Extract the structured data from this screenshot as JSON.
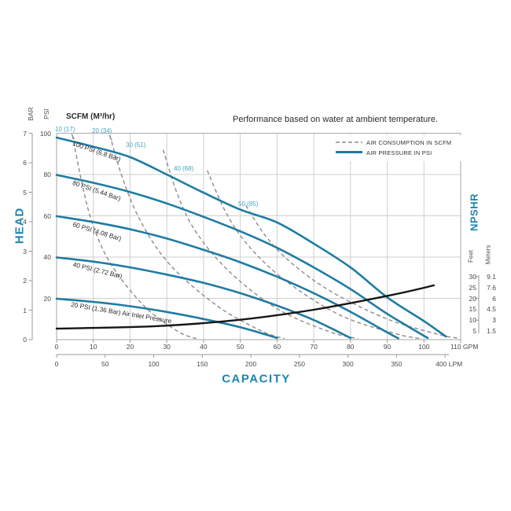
{
  "title": "Performance based on water at ambient temperature.",
  "legend": {
    "position": "top-right",
    "items": [
      {
        "label": "AIR CONSUMPTION IN SCFM",
        "style": "dashed-gray"
      },
      {
        "label": "AIR PRESSURE IN PSI",
        "style": "solid-blue"
      }
    ]
  },
  "scfm_header": "SCFM (M³/hr)",
  "axes": {
    "left": {
      "title": "HEAD",
      "col1": "BAR",
      "col2": "PSI",
      "bar_ticks": [
        "7",
        "6",
        "5",
        "4",
        "3",
        "2",
        "1",
        "0"
      ],
      "psi_ticks": [
        "100",
        "80",
        "60",
        "40",
        "20"
      ]
    },
    "bottom": {
      "title": "CAPACITY",
      "gpm_ticks": [
        "0",
        "10",
        "20",
        "30",
        "40",
        "50",
        "60",
        "70",
        "80",
        "90",
        "100",
        "110"
      ],
      "gpm_unit": "GPM",
      "lpm_ticks": [
        "0",
        "50",
        "100",
        "150",
        "200",
        "250",
        "300",
        "350",
        "400"
      ],
      "lpm_unit": "LPM"
    },
    "right": {
      "title": "NPSHR",
      "col1": "Feet",
      "col2": "Meters",
      "rows": [
        [
          "30",
          "9.1"
        ],
        [
          "25",
          "7.6"
        ],
        [
          "20",
          "6"
        ],
        [
          "15",
          "4.5"
        ],
        [
          "10",
          "3"
        ],
        [
          "5",
          "1.5"
        ]
      ]
    }
  },
  "colors": {
    "accent_blue": "#1e7ca3",
    "label_blue": "#48a2c3",
    "title_blue": "#1f85ad",
    "dashed_gray": "#8c8c8c",
    "grid": "#cfcfcf",
    "border": "#b3b3b3",
    "black_curve": "#161616",
    "text": "#4a4a4a"
  },
  "chart_data": {
    "type": "line",
    "title": "Performance based on water at ambient temperature.",
    "grid": true,
    "legend_position": "top-right",
    "x_axis": {
      "label": "CAPACITY",
      "primary_unit": "GPM",
      "primary_range": [
        0,
        110
      ],
      "primary_tick_step": 10,
      "secondary_unit": "LPM",
      "secondary_range": [
        0,
        400
      ],
      "secondary_tick_step": 50
    },
    "y_axis_left": {
      "label": "HEAD",
      "units": [
        "BAR",
        "PSI"
      ],
      "bar_range": [
        0,
        7
      ],
      "psi_range": [
        0,
        100
      ]
    },
    "y_axis_right": {
      "label": "NPSHR",
      "units": [
        "Feet",
        "Meters"
      ],
      "feet_ticks": [
        30,
        25,
        20,
        15,
        10,
        5
      ],
      "meters_ticks": [
        9.1,
        7.6,
        6,
        4.5,
        3,
        1.5
      ]
    },
    "pressure_curves": [
      {
        "label": "100 PSI (6.8 Bar)",
        "air_inlet_psi": 100,
        "points_gpm_psi": [
          [
            0,
            97.9
          ],
          [
            10,
            93.5
          ],
          [
            20,
            88.4
          ],
          [
            30,
            80
          ],
          [
            40,
            71.2
          ],
          [
            50,
            63
          ],
          [
            60,
            56.8
          ],
          [
            70,
            46.5
          ],
          [
            80,
            35
          ],
          [
            90,
            20.5
          ],
          [
            100,
            9
          ],
          [
            106,
            1.5
          ]
        ]
      },
      {
        "label": "80 PSI (5.44 Bar)",
        "air_inlet_psi": 80,
        "points_gpm_psi": [
          [
            0,
            79.8
          ],
          [
            10,
            76
          ],
          [
            20,
            71.5
          ],
          [
            30,
            66
          ],
          [
            40,
            59.5
          ],
          [
            50,
            52.5
          ],
          [
            60,
            44.5
          ],
          [
            70,
            35
          ],
          [
            80,
            24.5
          ],
          [
            90,
            12.5
          ],
          [
            101,
            0.8
          ]
        ]
      },
      {
        "label": "60 PSI (4.08 Bar)",
        "air_inlet_psi": 60,
        "points_gpm_psi": [
          [
            0,
            59.8
          ],
          [
            10,
            57
          ],
          [
            20,
            53.5
          ],
          [
            30,
            49
          ],
          [
            40,
            43.5
          ],
          [
            50,
            37.5
          ],
          [
            60,
            30.5
          ],
          [
            70,
            22.5
          ],
          [
            80,
            13.5
          ],
          [
            90,
            3.5
          ],
          [
            93,
            0.6
          ]
        ]
      },
      {
        "label": "40 PSI (2.72 Bar)",
        "air_inlet_psi": 40,
        "points_gpm_psi": [
          [
            0,
            39.8
          ],
          [
            10,
            37.8
          ],
          [
            20,
            35
          ],
          [
            30,
            31.5
          ],
          [
            40,
            27.5
          ],
          [
            50,
            22.5
          ],
          [
            60,
            16.5
          ],
          [
            70,
            9.5
          ],
          [
            80,
            0.8
          ]
        ]
      },
      {
        "label": "20 PSI (1.36 Bar) Air Inlet Pressure",
        "air_inlet_psi": 20,
        "points_gpm_psi": [
          [
            0,
            19.8
          ],
          [
            10,
            18.3
          ],
          [
            20,
            16.2
          ],
          [
            30,
            13.4
          ],
          [
            40,
            10
          ],
          [
            50,
            6
          ],
          [
            60,
            0.8
          ]
        ]
      }
    ],
    "air_consumption_curves": [
      {
        "label": "10 (17)",
        "scfm": 10,
        "m3_per_hr": 17,
        "points_gpm_psi": [
          [
            4.3,
            99
          ],
          [
            7,
            75
          ],
          [
            10,
            55
          ],
          [
            15,
            36
          ],
          [
            24,
            16
          ],
          [
            33,
            4
          ],
          [
            38,
            0.5
          ]
        ]
      },
      {
        "label": "20 (34)",
        "scfm": 20,
        "m3_per_hr": 34,
        "points_gpm_psi": [
          [
            14.5,
            99
          ],
          [
            18,
            78
          ],
          [
            23,
            57
          ],
          [
            31,
            36
          ],
          [
            44,
            16
          ],
          [
            56,
            4
          ],
          [
            62,
            0.5
          ]
        ]
      },
      {
        "label": "30 (51)",
        "scfm": 30,
        "m3_per_hr": 51,
        "points_gpm_psi": [
          [
            29,
            92
          ],
          [
            33,
            70
          ],
          [
            38,
            52
          ],
          [
            47,
            33
          ],
          [
            60,
            15
          ],
          [
            74,
            4
          ],
          [
            82,
            0.5
          ]
        ]
      },
      {
        "label": "40 (68)",
        "scfm": 40,
        "m3_per_hr": 68,
        "points_gpm_psi": [
          [
            41,
            82
          ],
          [
            46,
            62
          ],
          [
            52,
            46
          ],
          [
            62,
            29
          ],
          [
            77,
            12
          ],
          [
            92,
            3
          ],
          [
            99,
            0.5
          ]
        ]
      },
      {
        "label": "50 (85)",
        "scfm": 50,
        "m3_per_hr": 85,
        "points_gpm_psi": [
          [
            51.5,
            65
          ],
          [
            57,
            50
          ],
          [
            64,
            37
          ],
          [
            75,
            23
          ],
          [
            90,
            10
          ],
          [
            104,
            2.5
          ],
          [
            109,
            0.8
          ]
        ]
      }
    ],
    "npshr_curve": {
      "name": "NPSHR",
      "points_gpm_feet": [
        [
          0,
          6.1
        ],
        [
          27,
          7.2
        ],
        [
          49,
          10
        ],
        [
          70,
          14.8
        ],
        [
          91.5,
          21.7
        ],
        [
          102.7,
          26
        ]
      ]
    }
  }
}
